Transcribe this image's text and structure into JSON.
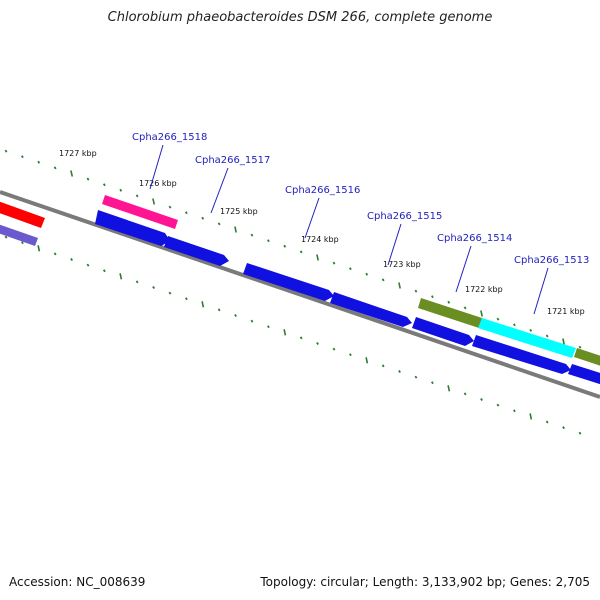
{
  "title": "Chlorobium phaeobacteroides DSM 266, complete genome",
  "footer": {
    "accession": "Accession: NC_008639",
    "summary": "Topology: circular; Length: 3,133,902 bp; Genes: 2,705"
  },
  "colors": {
    "backbone": "#7a7a7a",
    "tick": "#2e7d2e",
    "blue": "#1010e0",
    "red": "#ff0000",
    "slate": "#6a5acd",
    "pink": "#ff1493",
    "olive": "#6b8e23",
    "cyan": "#00ffff",
    "label": "#2222bb"
  },
  "tick_labels": [
    "1727 kbp",
    "1726 kbp",
    "1725 kbp",
    "1724 kbp",
    "1723 kbp",
    "1722 kbp",
    "1721 kbp"
  ],
  "gene_labels": [
    "Cpha266_1518",
    "Cpha266_1517",
    "Cpha266_1516",
    "Cpha266_1515",
    "Cpha266_1514",
    "Cpha266_1513"
  ]
}
